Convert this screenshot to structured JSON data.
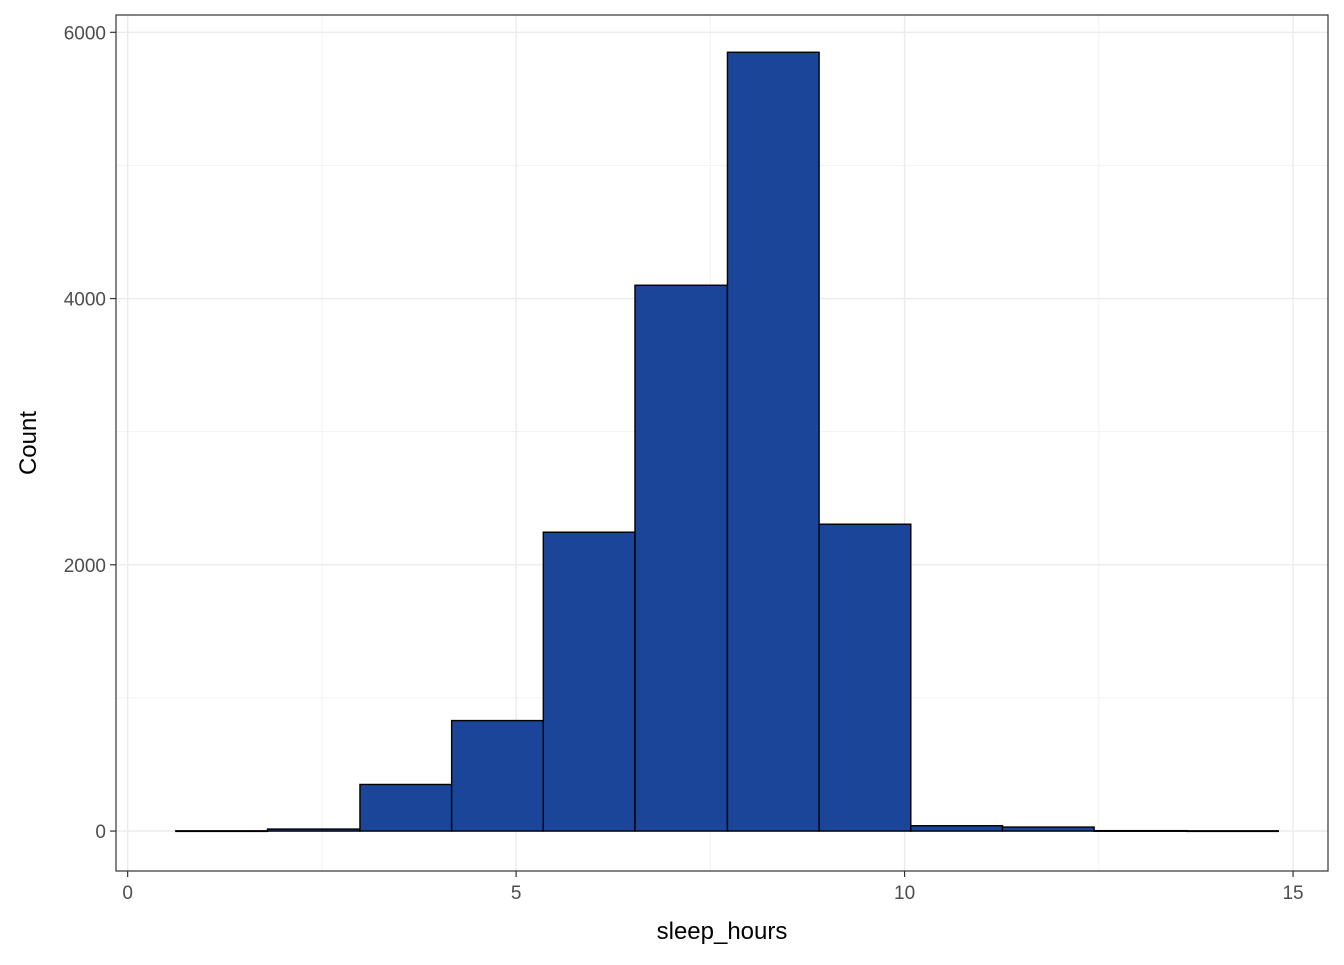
{
  "chart_data": {
    "type": "bar",
    "subtype": "histogram",
    "title": "",
    "xlabel": "sleep_hours",
    "ylabel": "Count",
    "xlim": [
      -0.15,
      15.45
    ],
    "ylim": [
      -300,
      6130
    ],
    "x_ticks": [
      0,
      5,
      10,
      15
    ],
    "y_ticks": [
      0,
      2000,
      4000,
      6000
    ],
    "grid": true,
    "legend": "none",
    "bins": [
      {
        "x0": 0.62,
        "x1": 1.8,
        "count": 2
      },
      {
        "x0": 1.8,
        "x1": 2.99,
        "count": 15
      },
      {
        "x0": 2.99,
        "x1": 4.17,
        "count": 350
      },
      {
        "x0": 4.17,
        "x1": 5.35,
        "count": 830
      },
      {
        "x0": 5.35,
        "x1": 6.53,
        "count": 2245
      },
      {
        "x0": 6.53,
        "x1": 7.72,
        "count": 4100
      },
      {
        "x0": 7.72,
        "x1": 8.9,
        "count": 5850
      },
      {
        "x0": 8.9,
        "x1": 10.08,
        "count": 2305
      },
      {
        "x0": 10.08,
        "x1": 11.26,
        "count": 40
      },
      {
        "x0": 11.26,
        "x1": 12.44,
        "count": 30
      },
      {
        "x0": 12.44,
        "x1": 13.63,
        "count": 3
      },
      {
        "x0": 13.63,
        "x1": 14.81,
        "count": 2
      }
    ],
    "colors": {
      "bar_fill": "#1a4599",
      "bar_stroke": "#000000",
      "panel_border": "#333333",
      "grid_major": "#ebebeb",
      "grid_minor": "#f3f3f3",
      "tick_label": "#4d4d4d"
    }
  }
}
